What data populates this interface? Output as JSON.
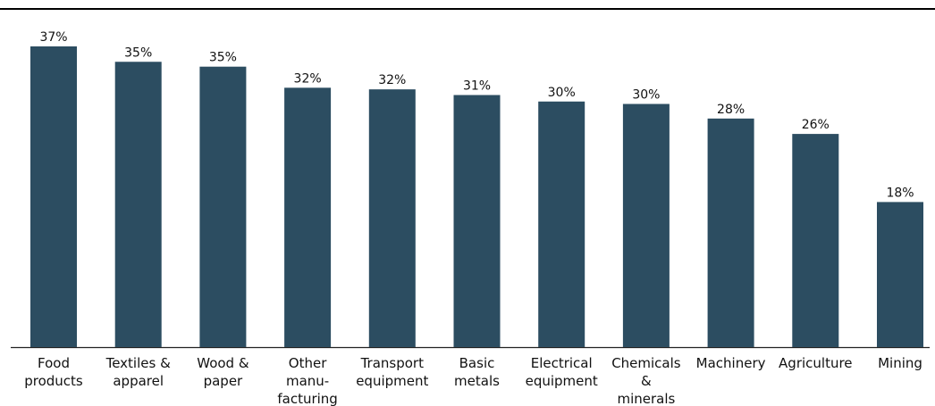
{
  "chart_data": {
    "type": "bar",
    "categories": [
      [
        "Food",
        "products"
      ],
      [
        "Textiles &",
        "apparel"
      ],
      [
        "Wood &",
        "paper"
      ],
      [
        "Other",
        "manu-",
        "facturing"
      ],
      [
        "Transport",
        "equipment"
      ],
      [
        "Basic",
        "metals"
      ],
      [
        "Electrical",
        "equipment"
      ],
      [
        "Chemicals",
        "&",
        "minerals"
      ],
      [
        "Machinery"
      ],
      [
        "Agriculture"
      ],
      [
        "Mining"
      ]
    ],
    "values": [
      37.1,
      35.2,
      34.6,
      32.0,
      31.8,
      31.1,
      30.3,
      30.0,
      28.2,
      26.3,
      17.9
    ],
    "value_labels": [
      "37%",
      "35%",
      "35%",
      "32%",
      "32%",
      "31%",
      "30%",
      "30%",
      "28%",
      "26%",
      "18%"
    ],
    "ylim": [
      0,
      37.1
    ],
    "grid": false,
    "colors": {
      "bar": "#2c4d61",
      "text": "#111111",
      "axis": "#222222"
    }
  }
}
